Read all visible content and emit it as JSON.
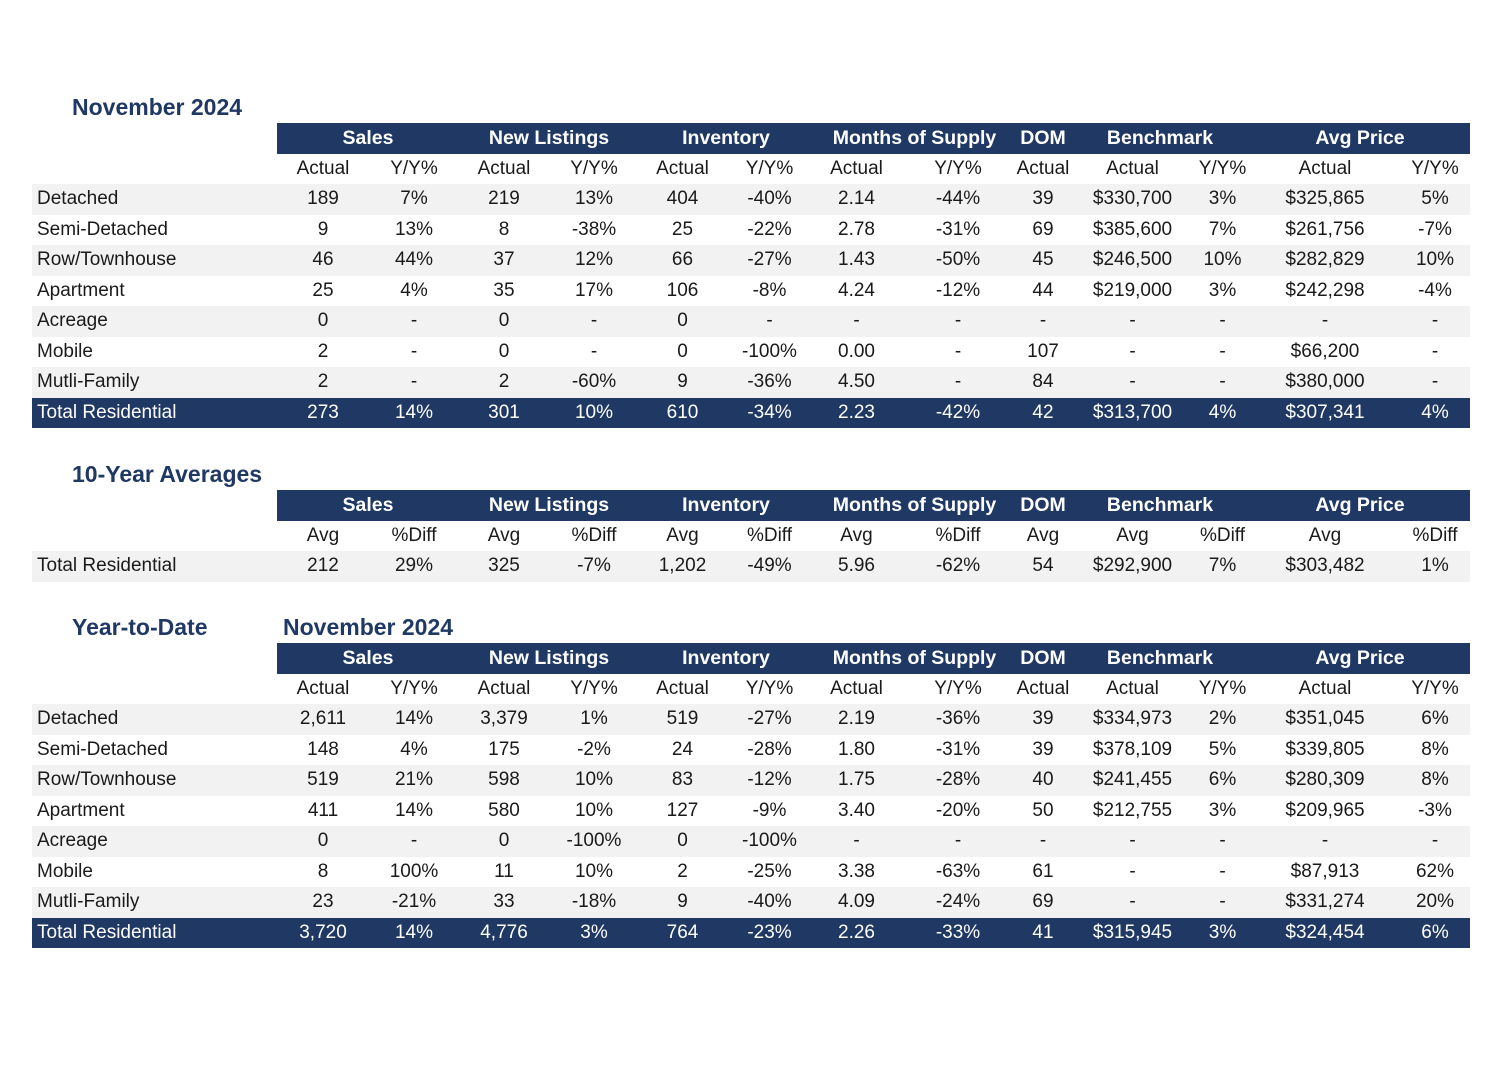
{
  "monthly": {
    "title": "November 2024",
    "groups": [
      "Sales",
      "New Listings",
      "Inventory",
      "Months of Supply",
      "DOM",
      "Benchmark",
      "Avg Price"
    ],
    "subheaders": [
      "Actual",
      "Y/Y%",
      "Actual",
      "Y/Y%",
      "Actual",
      "Y/Y%",
      "Actual",
      "Y/Y%",
      "Actual",
      "Actual",
      "Y/Y%",
      "Actual",
      "Y/Y%"
    ],
    "rows": [
      [
        "Detached",
        "189",
        "7%",
        "219",
        "13%",
        "404",
        "-40%",
        "2.14",
        "-44%",
        "39",
        "$330,700",
        "3%",
        "$325,865",
        "5%"
      ],
      [
        "Semi-Detached",
        "9",
        "13%",
        "8",
        "-38%",
        "25",
        "-22%",
        "2.78",
        "-31%",
        "69",
        "$385,600",
        "7%",
        "$261,756",
        "-7%"
      ],
      [
        "Row/Townhouse",
        "46",
        "44%",
        "37",
        "12%",
        "66",
        "-27%",
        "1.43",
        "-50%",
        "45",
        "$246,500",
        "10%",
        "$282,829",
        "10%"
      ],
      [
        "Apartment",
        "25",
        "4%",
        "35",
        "17%",
        "106",
        "-8%",
        "4.24",
        "-12%",
        "44",
        "$219,000",
        "3%",
        "$242,298",
        "-4%"
      ],
      [
        "Acreage",
        "0",
        "-",
        "0",
        "-",
        "0",
        "-",
        "-",
        "-",
        "-",
        "-",
        "-",
        "-",
        "-"
      ],
      [
        "Mobile",
        "2",
        "-",
        "0",
        "-",
        "0",
        "-100%",
        "0.00",
        "-",
        "107",
        "-",
        "-",
        "$66,200",
        "-"
      ],
      [
        "Mutli-Family",
        "2",
        "-",
        "2",
        "-60%",
        "9",
        "-36%",
        "4.50",
        "-",
        "84",
        "-",
        "-",
        "$380,000",
        "-"
      ]
    ],
    "total": [
      "Total Residential",
      "273",
      "14%",
      "301",
      "10%",
      "610",
      "-34%",
      "2.23",
      "-42%",
      "42",
      "$313,700",
      "4%",
      "$307,341",
      "4%"
    ]
  },
  "averages": {
    "title": "10-Year Averages",
    "groups": [
      "Sales",
      "New Listings",
      "Inventory",
      "Months of Supply",
      "DOM",
      "Benchmark",
      "Avg Price"
    ],
    "subheaders": [
      "Avg",
      "%Diff",
      "Avg",
      "%Diff",
      "Avg",
      "%Diff",
      "Avg",
      "%Diff",
      "Avg",
      "Avg",
      "%Diff",
      "Avg",
      "%Diff"
    ],
    "rows": [
      [
        "Total Residential",
        "212",
        "29%",
        "325",
        "-7%",
        "1,202",
        "-49%",
        "5.96",
        "-62%",
        "54",
        "$292,900",
        "7%",
        "$303,482",
        "1%"
      ]
    ]
  },
  "ytd": {
    "title": "Year-to-Date",
    "subtitle": "November 2024",
    "groups": [
      "Sales",
      "New Listings",
      "Inventory",
      "Months of Supply",
      "DOM",
      "Benchmark",
      "Avg Price"
    ],
    "subheaders": [
      "Actual",
      "Y/Y%",
      "Actual",
      "Y/Y%",
      "Actual",
      "Y/Y%",
      "Actual",
      "Y/Y%",
      "Actual",
      "Actual",
      "Y/Y%",
      "Actual",
      "Y/Y%"
    ],
    "rows": [
      [
        "Detached",
        "2,611",
        "14%",
        "3,379",
        "1%",
        "519",
        "-27%",
        "2.19",
        "-36%",
        "39",
        "$334,973",
        "2%",
        "$351,045",
        "6%"
      ],
      [
        "Semi-Detached",
        "148",
        "4%",
        "175",
        "-2%",
        "24",
        "-28%",
        "1.80",
        "-31%",
        "39",
        "$378,109",
        "5%",
        "$339,805",
        "8%"
      ],
      [
        "Row/Townhouse",
        "519",
        "21%",
        "598",
        "10%",
        "83",
        "-12%",
        "1.75",
        "-28%",
        "40",
        "$241,455",
        "6%",
        "$280,309",
        "8%"
      ],
      [
        "Apartment",
        "411",
        "14%",
        "580",
        "10%",
        "127",
        "-9%",
        "3.40",
        "-20%",
        "50",
        "$212,755",
        "3%",
        "$209,965",
        "-3%"
      ],
      [
        "Acreage",
        "0",
        "-",
        "0",
        "-100%",
        "0",
        "-100%",
        "-",
        "-",
        "-",
        "-",
        "-",
        "-",
        "-"
      ],
      [
        "Mobile",
        "8",
        "100%",
        "11",
        "10%",
        "2",
        "-25%",
        "3.38",
        "-63%",
        "61",
        "-",
        "-",
        "$87,913",
        "62%"
      ],
      [
        "Mutli-Family",
        "23",
        "-21%",
        "33",
        "-18%",
        "9",
        "-40%",
        "4.09",
        "-24%",
        "69",
        "-",
        "-",
        "$331,274",
        "20%"
      ]
    ],
    "total": [
      "Total Residential",
      "3,720",
      "14%",
      "4,776",
      "3%",
      "764",
      "-23%",
      "2.26",
      "-33%",
      "41",
      "$315,945",
      "3%",
      "$324,454",
      "6%"
    ]
  }
}
